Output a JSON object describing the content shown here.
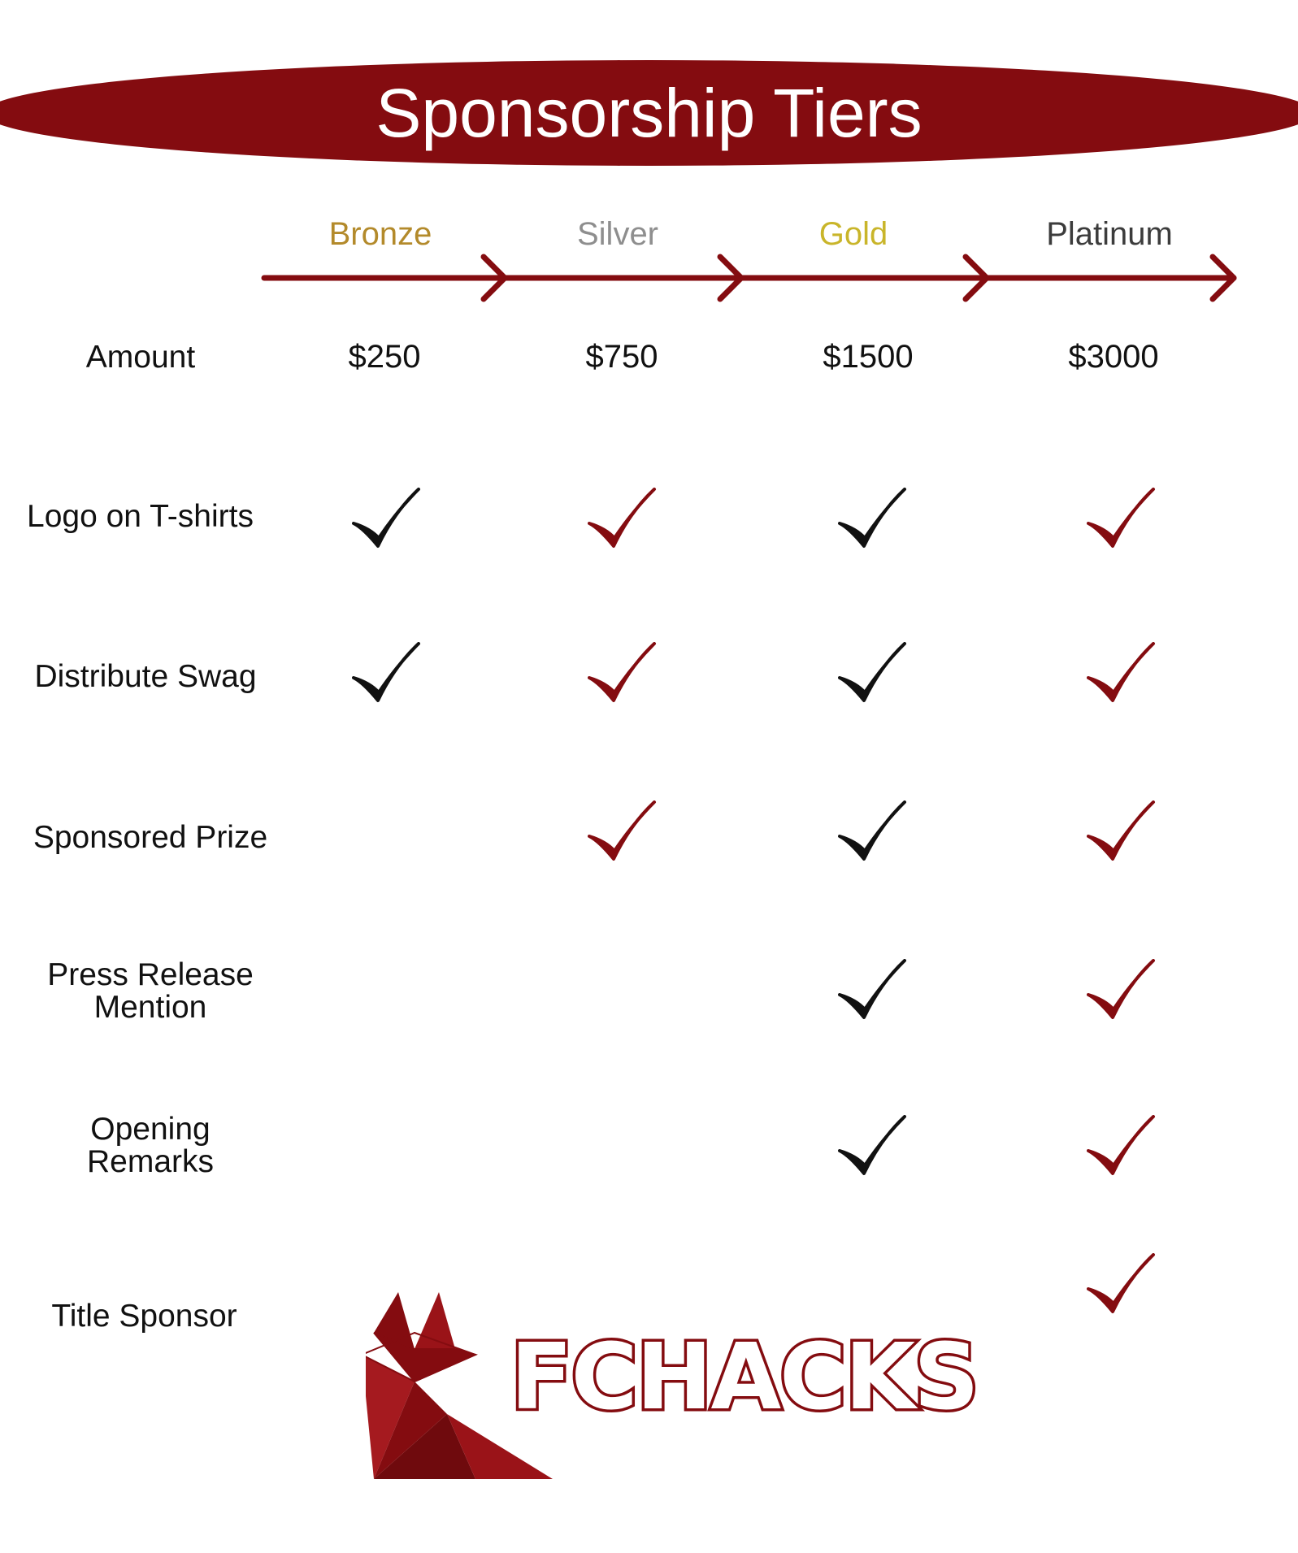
{
  "title": "Sponsorship Tiers",
  "colors": {
    "brand": "#840c10",
    "bronze": "#b38a2b",
    "silver": "#8e8e8e",
    "gold": "#c9b52a",
    "platinum": "#3c3c3c",
    "check_dark": "#111111",
    "check_red": "#840c10"
  },
  "tiers": [
    {
      "name": "Bronze",
      "amount": "$250"
    },
    {
      "name": "Silver",
      "amount": "$750"
    },
    {
      "name": "Gold",
      "amount": "$1500"
    },
    {
      "name": "Platinum",
      "amount": "$3000"
    }
  ],
  "amount_label": "Amount",
  "benefits": [
    {
      "label": "Logo on T-shirts",
      "included": [
        true,
        true,
        true,
        true
      ]
    },
    {
      "label": "Distribute Swag",
      "included": [
        true,
        true,
        true,
        true
      ]
    },
    {
      "label": "Sponsored Prize",
      "included": [
        false,
        true,
        true,
        true
      ]
    },
    {
      "label_lines": [
        "Press Release",
        "Mention"
      ],
      "included": [
        false,
        false,
        true,
        true
      ]
    },
    {
      "label_lines": [
        "Opening",
        "Remarks"
      ],
      "included": [
        false,
        false,
        true,
        true
      ]
    },
    {
      "label": "Title Sponsor",
      "included": [
        false,
        false,
        false,
        true
      ]
    }
  ],
  "logo": {
    "text": "FCHACKS",
    "icon": "fox-logo-icon"
  }
}
